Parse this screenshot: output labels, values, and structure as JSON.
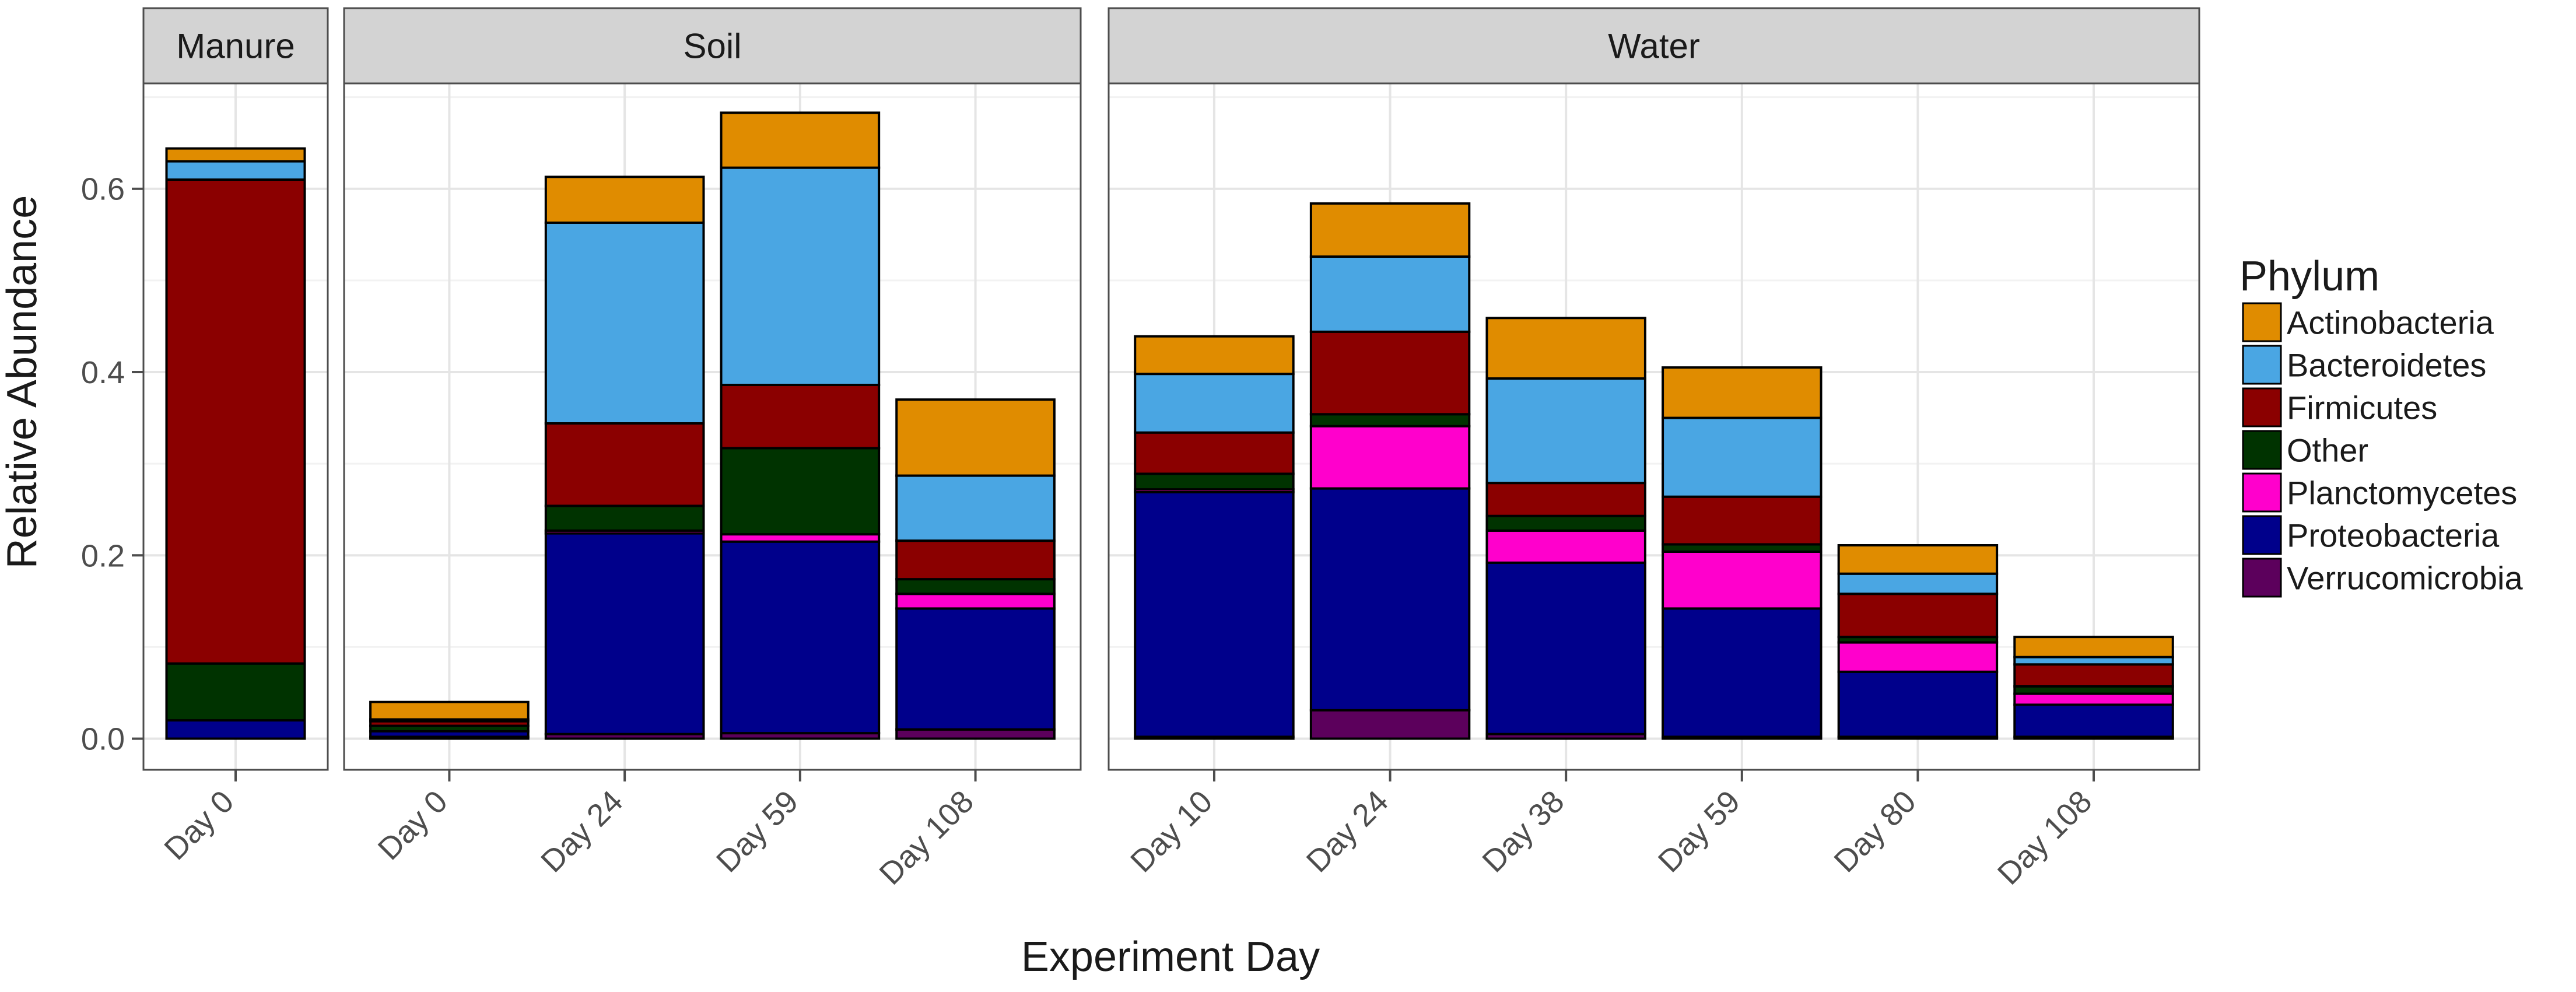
{
  "chart_data": {
    "type": "bar",
    "stacked": true,
    "xlabel": "Experiment Day",
    "ylabel": "Relative Abundance",
    "ylim": [
      -0.034,
      0.715
    ],
    "yticks": [
      0.0,
      0.2,
      0.4,
      0.6
    ],
    "ytick_labels": [
      "0.0",
      "0.2",
      "0.4",
      "0.6"
    ],
    "grid": true,
    "legend": {
      "title": "Phylum",
      "position": "right",
      "entries": [
        "Actinobacteria",
        "Bacteroidetes",
        "Firmicutes",
        "Other",
        "Planctomycetes",
        "Proteobacteria",
        "Verrucomicrobia"
      ]
    },
    "colors": {
      "Verrucomicrobia": "#5c005c",
      "Proteobacteria": "#00008b",
      "Planctomycetes": "#ff00cc",
      "Other": "#003300",
      "Firmicutes": "#8b0000",
      "Bacteroidetes": "#4aa6e3",
      "Actinobacteria": "#e08c00"
    },
    "stack_order": [
      "Verrucomicrobia",
      "Proteobacteria",
      "Planctomycetes",
      "Other",
      "Firmicutes",
      "Bacteroidetes",
      "Actinobacteria"
    ],
    "panels": [
      {
        "name": "Manure",
        "categories": [
          "Day 0"
        ],
        "bars": [
          {
            "Verrucomicrobia": 0.0,
            "Proteobacteria": 0.02,
            "Planctomycetes": 0.0,
            "Other": 0.062,
            "Firmicutes": 0.528,
            "Bacteroidetes": 0.02,
            "Actinobacteria": 0.014
          }
        ]
      },
      {
        "name": "Soil",
        "categories": [
          "Day 0",
          "Day 24",
          "Day 59",
          "Day 108"
        ],
        "bars": [
          {
            "Verrucomicrobia": 0.002,
            "Proteobacteria": 0.006,
            "Planctomycetes": 0.0,
            "Other": 0.006,
            "Firmicutes": 0.005,
            "Bacteroidetes": 0.002,
            "Actinobacteria": 0.019
          },
          {
            "Verrucomicrobia": 0.005,
            "Proteobacteria": 0.219,
            "Planctomycetes": 0.003,
            "Other": 0.027,
            "Firmicutes": 0.09,
            "Bacteroidetes": 0.219,
            "Actinobacteria": 0.05
          },
          {
            "Verrucomicrobia": 0.006,
            "Proteobacteria": 0.209,
            "Planctomycetes": 0.008,
            "Other": 0.094,
            "Firmicutes": 0.069,
            "Bacteroidetes": 0.237,
            "Actinobacteria": 0.06
          },
          {
            "Verrucomicrobia": 0.01,
            "Proteobacteria": 0.132,
            "Planctomycetes": 0.016,
            "Other": 0.016,
            "Firmicutes": 0.042,
            "Bacteroidetes": 0.071,
            "Actinobacteria": 0.083
          }
        ]
      },
      {
        "name": "Water",
        "categories": [
          "Day 10",
          "Day 24",
          "Day 38",
          "Day 59",
          "Day 80",
          "Day 108"
        ],
        "bars": [
          {
            "Verrucomicrobia": 0.002,
            "Proteobacteria": 0.267,
            "Planctomycetes": 0.003,
            "Other": 0.017,
            "Firmicutes": 0.045,
            "Bacteroidetes": 0.064,
            "Actinobacteria": 0.041
          },
          {
            "Verrucomicrobia": 0.031,
            "Proteobacteria": 0.242,
            "Planctomycetes": 0.068,
            "Other": 0.013,
            "Firmicutes": 0.09,
            "Bacteroidetes": 0.082,
            "Actinobacteria": 0.058
          },
          {
            "Verrucomicrobia": 0.005,
            "Proteobacteria": 0.187,
            "Planctomycetes": 0.035,
            "Other": 0.016,
            "Firmicutes": 0.036,
            "Bacteroidetes": 0.114,
            "Actinobacteria": 0.066
          },
          {
            "Verrucomicrobia": 0.002,
            "Proteobacteria": 0.14,
            "Planctomycetes": 0.062,
            "Other": 0.008,
            "Firmicutes": 0.052,
            "Bacteroidetes": 0.086,
            "Actinobacteria": 0.055
          },
          {
            "Verrucomicrobia": 0.002,
            "Proteobacteria": 0.071,
            "Planctomycetes": 0.032,
            "Other": 0.006,
            "Firmicutes": 0.047,
            "Bacteroidetes": 0.022,
            "Actinobacteria": 0.031
          },
          {
            "Verrucomicrobia": 0.002,
            "Proteobacteria": 0.035,
            "Planctomycetes": 0.012,
            "Other": 0.008,
            "Firmicutes": 0.024,
            "Bacteroidetes": 0.008,
            "Actinobacteria": 0.022
          }
        ]
      }
    ]
  }
}
